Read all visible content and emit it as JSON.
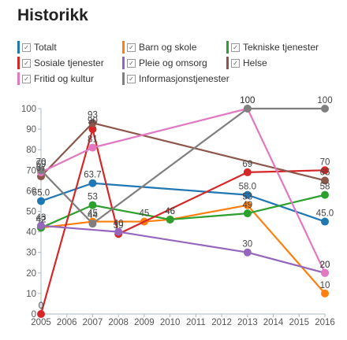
{
  "title": "Historikk",
  "chart_data": {
    "type": "line",
    "title": "Historikk",
    "x": [
      2005,
      2007,
      2008,
      2009,
      2010,
      2013,
      2016
    ],
    "x_ticks": [
      2005,
      2006,
      2007,
      2008,
      2009,
      2010,
      2011,
      2012,
      2013,
      2014,
      2015,
      2016
    ],
    "y_ticks": [
      0,
      10,
      20,
      30,
      40,
      50,
      60,
      70,
      80,
      90,
      100
    ],
    "xlim": [
      2005,
      2016
    ],
    "ylim": [
      0,
      100
    ],
    "grid": false,
    "legend_position": "top",
    "series": [
      {
        "name": "Totalt",
        "color": "#1f77b4",
        "values": [
          55.0,
          63.7,
          null,
          null,
          null,
          58.0,
          45.0
        ],
        "labels": [
          "55.0",
          "63.7",
          null,
          null,
          null,
          "58.0",
          "45.0"
        ]
      },
      {
        "name": "Barn og skole",
        "color": "#ff7f0e",
        "values": [
          42,
          45,
          null,
          45,
          46,
          53,
          10
        ],
        "labels": [
          "42",
          "45",
          null,
          "45",
          "46",
          "53",
          "10"
        ]
      },
      {
        "name": "Tekniske tjenester",
        "color": "#2ca02c",
        "values": [
          42,
          53,
          null,
          null,
          46,
          49,
          58
        ],
        "labels": [
          "42",
          "53",
          null,
          null,
          "46",
          "49",
          "58"
        ]
      },
      {
        "name": "Sosiale tjenester",
        "color": "#d62728",
        "values": [
          0,
          90,
          39,
          null,
          null,
          69,
          70
        ],
        "labels": [
          "0",
          "90",
          "39",
          null,
          null,
          "69",
          "70"
        ]
      },
      {
        "name": "Pleie og omsorg",
        "color": "#9467bd",
        "values": [
          43,
          null,
          40,
          null,
          null,
          30,
          20
        ],
        "labels": [
          "43",
          null,
          "40",
          null,
          null,
          "30",
          "20"
        ]
      },
      {
        "name": "Helse",
        "color": "#8c564b",
        "values": [
          67,
          93,
          null,
          null,
          null,
          null,
          65
        ],
        "labels": [
          "67",
          "93",
          null,
          null,
          null,
          null,
          "65"
        ]
      },
      {
        "name": "Fritid og kultur",
        "color": "#e377c2",
        "values": [
          69,
          81,
          null,
          null,
          null,
          100,
          20
        ],
        "labels": [
          "69",
          "81",
          null,
          null,
          null,
          "100",
          "20"
        ]
      },
      {
        "name": "Informasjonstjenester",
        "color": "#7f7f7f",
        "values": [
          70,
          44,
          null,
          null,
          null,
          100,
          100
        ],
        "labels": [
          "70",
          "44",
          null,
          null,
          null,
          "100",
          "100"
        ]
      }
    ]
  }
}
